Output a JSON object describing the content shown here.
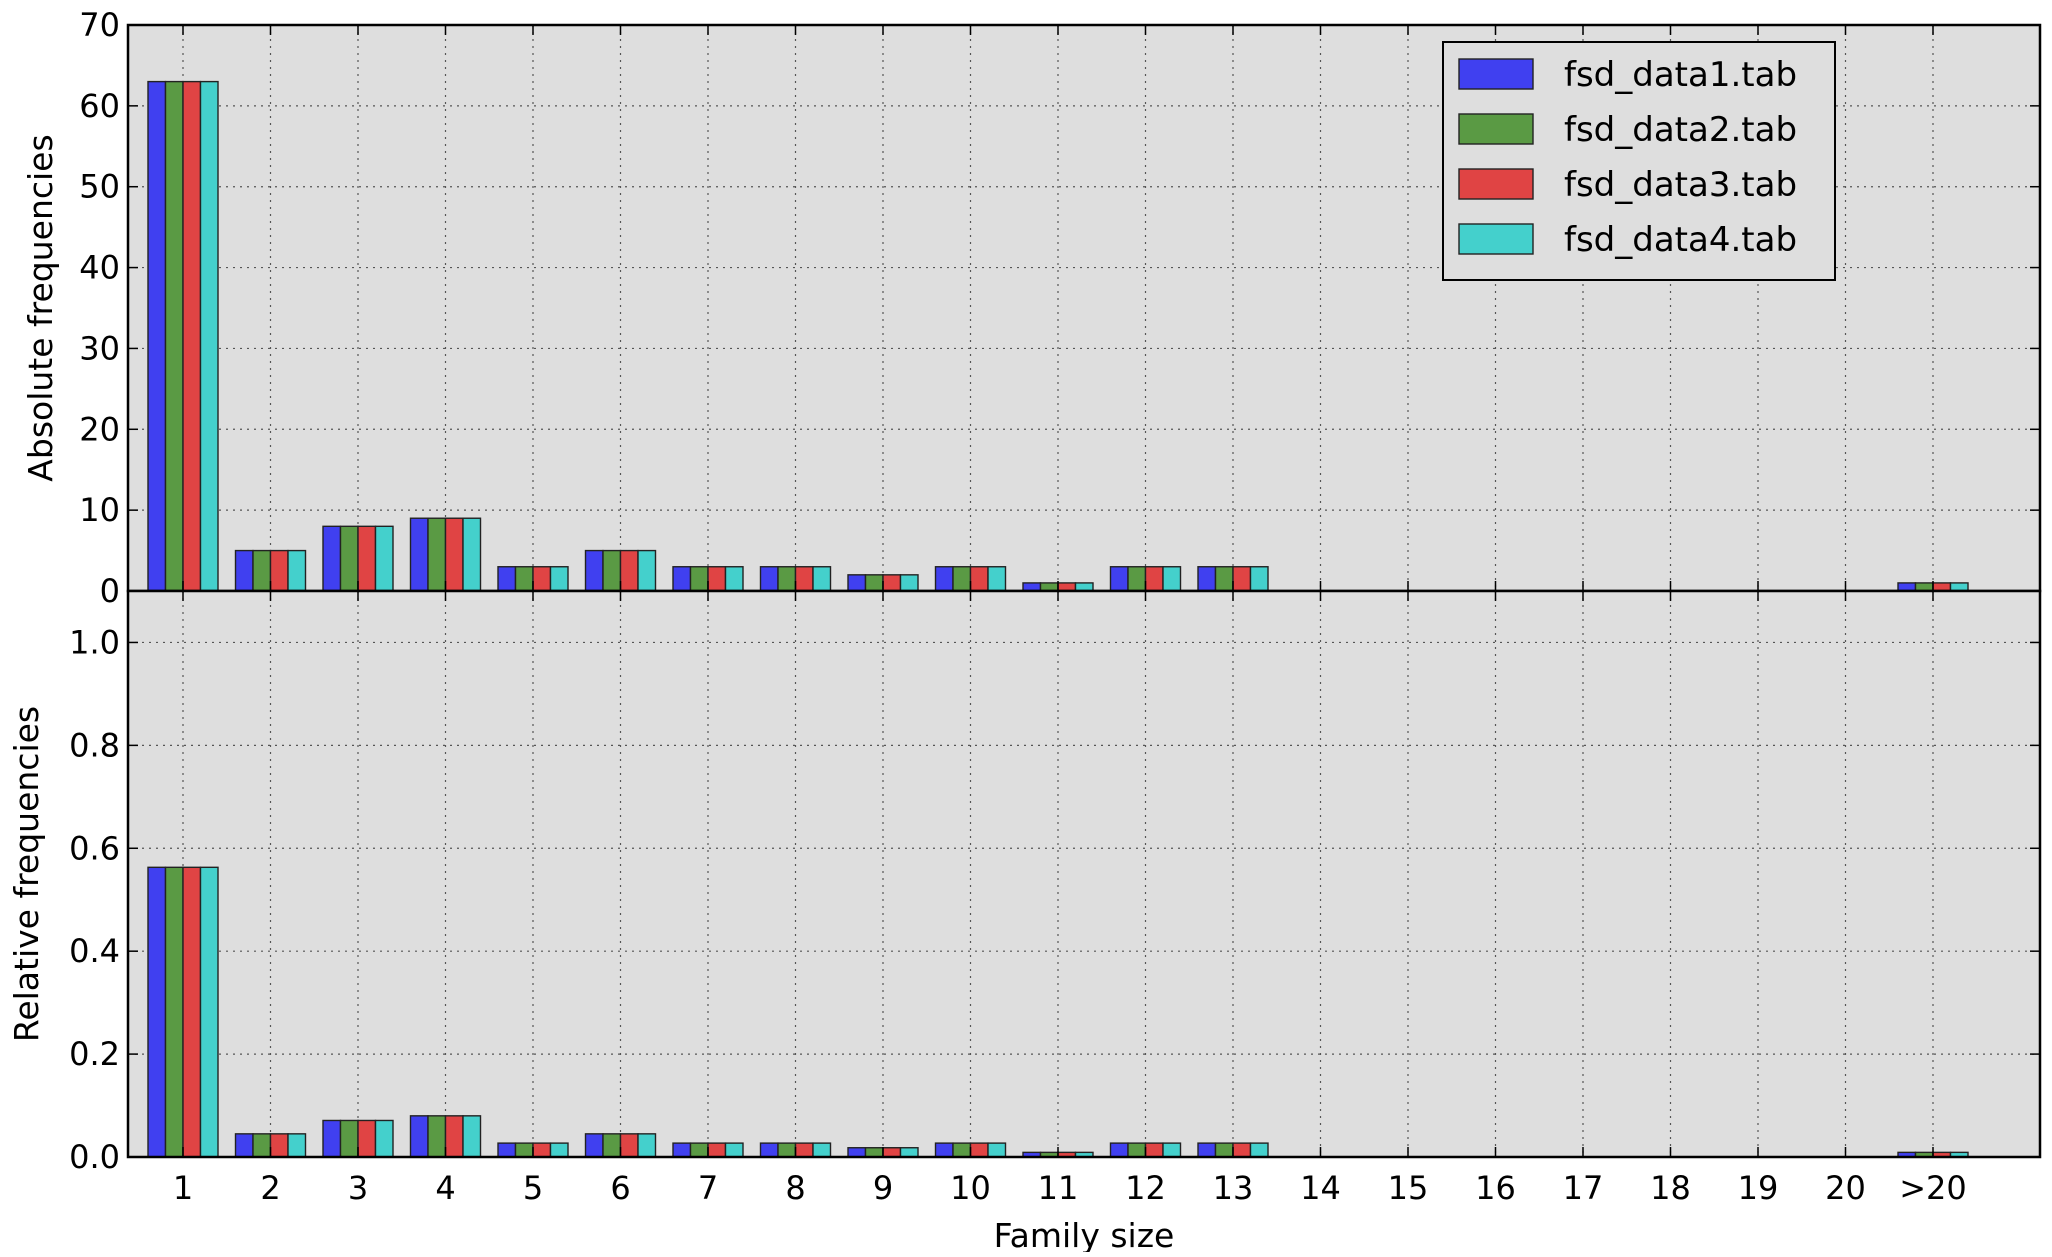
{
  "chart_data": [
    {
      "type": "bar",
      "ylabel": "Absolute frequencies",
      "ylim": [
        0,
        70
      ],
      "yticks": [
        "0",
        "10",
        "20",
        "30",
        "40",
        "50",
        "60",
        "70"
      ],
      "grid": true,
      "legend_position": "top-right",
      "categories": [
        "1",
        "2",
        "3",
        "4",
        "5",
        "6",
        "7",
        "8",
        "9",
        "10",
        "11",
        "12",
        "13",
        "14",
        "15",
        "16",
        "17",
        "18",
        "19",
        "20",
        ">20"
      ],
      "series": [
        {
          "name": "fsd_data1.tab",
          "color": "#4040f0",
          "values": [
            63,
            5,
            8,
            9,
            3,
            5,
            3,
            3,
            2,
            3,
            1,
            3,
            3,
            0,
            0,
            0,
            0,
            0,
            0,
            0,
            1
          ]
        },
        {
          "name": "fsd_data2.tab",
          "color": "#5a9a44",
          "values": [
            63,
            5,
            8,
            9,
            3,
            5,
            3,
            3,
            2,
            3,
            1,
            3,
            3,
            0,
            0,
            0,
            0,
            0,
            0,
            0,
            1
          ]
        },
        {
          "name": "fsd_data3.tab",
          "color": "#e04444",
          "values": [
            63,
            5,
            8,
            9,
            3,
            5,
            3,
            3,
            2,
            3,
            1,
            3,
            3,
            0,
            0,
            0,
            0,
            0,
            0,
            0,
            1
          ]
        },
        {
          "name": "fsd_data4.tab",
          "color": "#44d0cc",
          "values": [
            63,
            5,
            8,
            9,
            3,
            5,
            3,
            3,
            2,
            3,
            1,
            3,
            3,
            0,
            0,
            0,
            0,
            0,
            0,
            0,
            1
          ]
        }
      ]
    },
    {
      "type": "bar",
      "xlabel": "Family size",
      "ylabel": "Relative frequencies",
      "ylim": [
        0,
        1.1
      ],
      "yticks": [
        "0.0",
        "0.2",
        "0.4",
        "0.6",
        "0.8",
        "1.0"
      ],
      "grid": true,
      "categories": [
        "1",
        "2",
        "3",
        "4",
        "5",
        "6",
        "7",
        "8",
        "9",
        "10",
        "11",
        "12",
        "13",
        "14",
        "15",
        "16",
        "17",
        "18",
        "19",
        "20",
        ">20"
      ],
      "series": [
        {
          "name": "fsd_data1.tab",
          "color": "#4040f0",
          "values": [
            0.563,
            0.045,
            0.071,
            0.08,
            0.027,
            0.045,
            0.027,
            0.027,
            0.018,
            0.027,
            0.009,
            0.027,
            0.027,
            0,
            0,
            0,
            0,
            0,
            0,
            0,
            0.009
          ]
        },
        {
          "name": "fsd_data2.tab",
          "color": "#5a9a44",
          "values": [
            0.563,
            0.045,
            0.071,
            0.08,
            0.027,
            0.045,
            0.027,
            0.027,
            0.018,
            0.027,
            0.009,
            0.027,
            0.027,
            0,
            0,
            0,
            0,
            0,
            0,
            0,
            0.009
          ]
        },
        {
          "name": "fsd_data3.tab",
          "color": "#e04444",
          "values": [
            0.563,
            0.045,
            0.071,
            0.08,
            0.027,
            0.045,
            0.027,
            0.027,
            0.018,
            0.027,
            0.009,
            0.027,
            0.027,
            0,
            0,
            0,
            0,
            0,
            0,
            0,
            0.009
          ]
        },
        {
          "name": "fsd_data4.tab",
          "color": "#44d0cc",
          "values": [
            0.563,
            0.045,
            0.071,
            0.08,
            0.027,
            0.045,
            0.027,
            0.027,
            0.018,
            0.027,
            0.009,
            0.027,
            0.027,
            0,
            0,
            0,
            0,
            0,
            0,
            0,
            0.009
          ]
        }
      ]
    }
  ]
}
